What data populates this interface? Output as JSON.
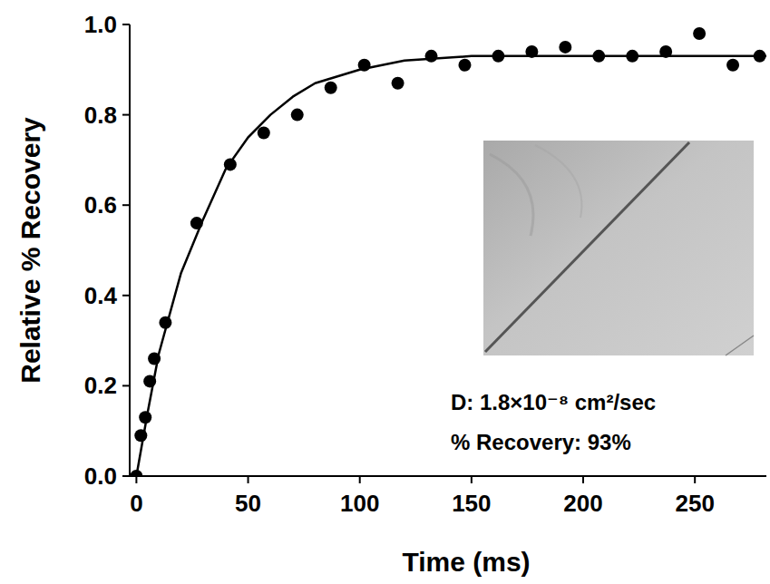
{
  "chart_data": {
    "type": "scatter",
    "x_label": "Time (ms)",
    "y_label": "Relative % Recovery",
    "annotations": [
      "D: 1.8×10⁻⁸ cm²/sec",
      "% Recovery: 93%"
    ],
    "xlim": [
      -3,
      282
    ],
    "ylim": [
      0,
      1
    ],
    "xticks": [
      0,
      50,
      100,
      150,
      200,
      250
    ],
    "yticks": [
      {
        "value": 0,
        "label": "0.0"
      },
      0.2,
      0.4,
      0.6,
      0.8,
      {
        "value": 1,
        "label": "1.0"
      }
    ],
    "grid": false,
    "series": [
      {
        "type": "scatter",
        "marker": "circle",
        "color": "#000000",
        "x": [
          0,
          2,
          4,
          6,
          8,
          13,
          27,
          42,
          57,
          72,
          87,
          102,
          117,
          132,
          147,
          162,
          177,
          192,
          207,
          222,
          237,
          252,
          267,
          279
        ],
        "values": [
          0,
          0.09,
          0.13,
          0.21,
          0.26,
          0.34,
          0.56,
          0.69,
          0.76,
          0.8,
          0.86,
          0.91,
          0.87,
          0.93,
          0.91,
          0.93,
          0.94,
          0.95,
          0.93,
          0.93,
          0.94,
          0.98,
          0.91,
          0.93
        ]
      },
      {
        "type": "line",
        "line_style": "solid",
        "color": "#000000",
        "x": [
          0,
          5,
          10,
          20,
          30,
          40,
          50,
          60,
          70,
          80,
          100,
          120,
          150,
          200,
          282
        ],
        "values": [
          0,
          0.14,
          0.27,
          0.45,
          0.57,
          0.68,
          0.75,
          0.8,
          0.84,
          0.87,
          0.9,
          0.92,
          0.93,
          0.93,
          0.93
        ]
      }
    ]
  }
}
